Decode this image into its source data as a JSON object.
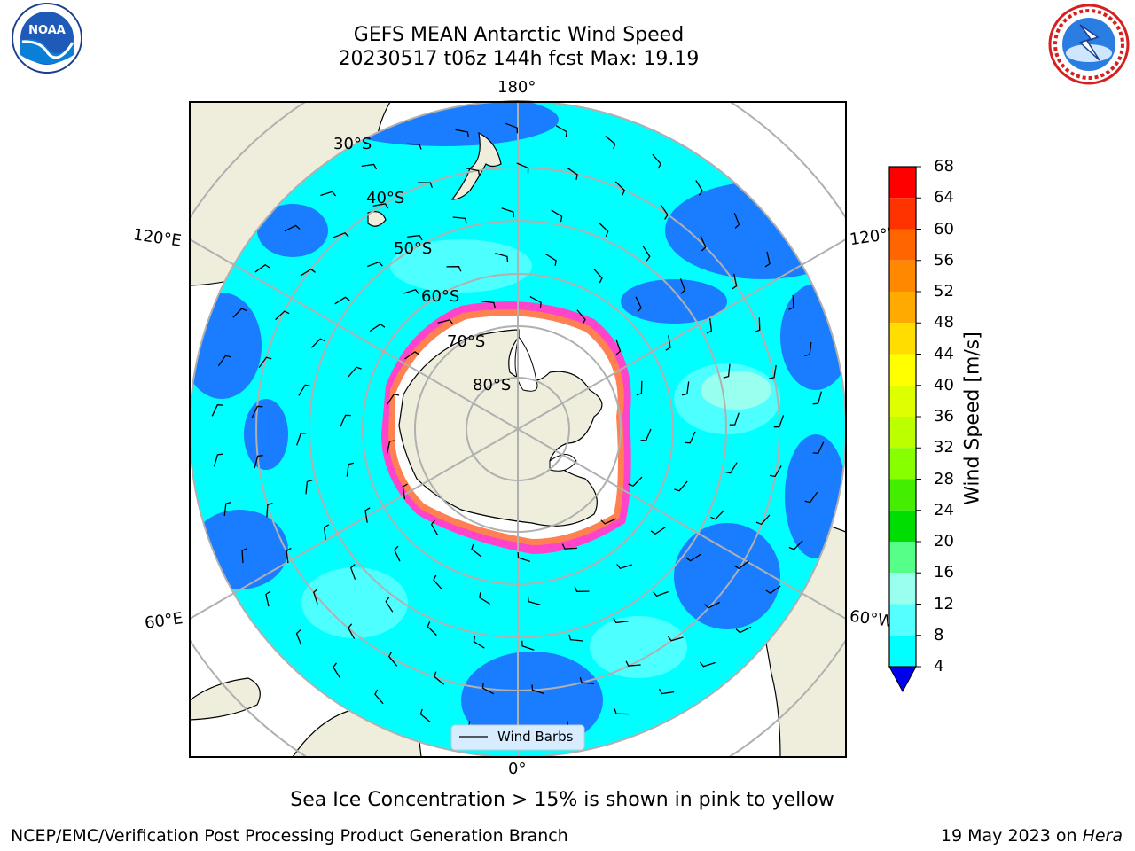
{
  "title": {
    "line1": "GEFS MEAN Antarctic Wind Speed",
    "line2": "20230517 t06z 144h fcst   Max: 19.19"
  },
  "logos": {
    "noaa": {
      "text": "NOAA",
      "ring_text": "NATIONAL OCEANIC AND ATMOSPHERIC ADMINISTRATION · U.S. DEPARTMENT OF COMMERCE"
    },
    "nws": {
      "ring_text": "NATIONAL WEATHER SERVICE"
    }
  },
  "map": {
    "lon_labels": [
      "180°",
      "120°E",
      "120°W",
      "60°E",
      "60°W",
      "0°"
    ],
    "lat_labels": [
      "30°S",
      "40°S",
      "50°S",
      "60°S",
      "70°S",
      "80°S"
    ],
    "legend": {
      "label": "Wind Barbs"
    }
  },
  "colorbar": {
    "label": "Wind Speed [m/s]",
    "ticks": [
      "68",
      "64",
      "60",
      "56",
      "52",
      "48",
      "44",
      "40",
      "36",
      "32",
      "28",
      "24",
      "20",
      "16",
      "12",
      "8",
      "4"
    ],
    "colors": [
      "#ff0000",
      "#ff3300",
      "#ff6600",
      "#ff8800",
      "#ffaa00",
      "#ffdd00",
      "#ffff00",
      "#ddff00",
      "#bbff00",
      "#88ff00",
      "#44ee00",
      "#00dd00",
      "#55ff88",
      "#99ffee",
      "#55ffff",
      "#00ffff",
      "#0066ff"
    ],
    "extend_color": "#0000ee"
  },
  "caption": "Sea Ice Concentration > 15% is shown in pink to yellow",
  "footer": {
    "left": "NCEP/EMC/Verification Post Processing Product Generation Branch",
    "right_date": "19 May 2023 on ",
    "right_host": "Hera"
  }
}
